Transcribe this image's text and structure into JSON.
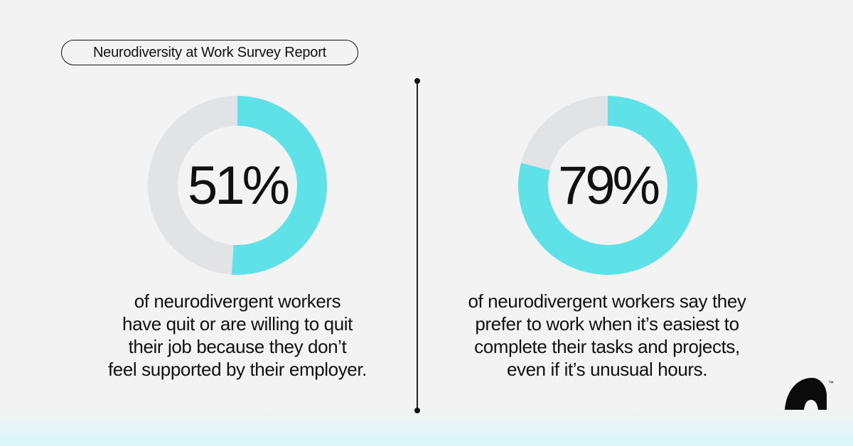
{
  "header": {
    "report_label": "Neurodiversity at Work Survey Report"
  },
  "colors": {
    "accent": "#5ee2e8",
    "track": "#e2e3e5",
    "text": "#111111",
    "background": "#f3f3f3"
  },
  "chart_data": [
    {
      "type": "pie",
      "style": "donut",
      "value_label": "51%",
      "values": [
        51,
        49
      ],
      "colors": [
        "#5ee2e8",
        "#e2e3e5"
      ],
      "caption_lines": [
        "of neurodivergent workers",
        "have quit or are willing to quit",
        "their job because they don’t",
        "feel supported by their employer."
      ]
    },
    {
      "type": "pie",
      "style": "donut",
      "value_label": "79%",
      "values": [
        79,
        21
      ],
      "colors": [
        "#5ee2e8",
        "#e2e3e5"
      ],
      "caption_lines": [
        "of neurodivergent workers say they",
        "prefer to work when it’s easiest to",
        "complete their tasks and projects,",
        "even if it’s unusual hours."
      ]
    }
  ],
  "logo": {
    "icon": "brand-logo-icon",
    "mark": "™"
  }
}
